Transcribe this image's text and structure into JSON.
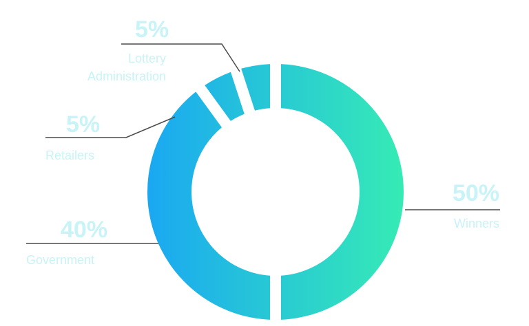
{
  "chart_data": {
    "type": "pie",
    "title": "",
    "categories": [
      "Winners",
      "Government",
      "Retailers",
      "Lottery Administration"
    ],
    "values": [
      50,
      40,
      5,
      5
    ],
    "value_labels": [
      "50%",
      "40%",
      "5%",
      "5%"
    ],
    "label_lines": {
      "winners": [
        "Winners"
      ],
      "government": [
        "Government"
      ],
      "retailers": [
        "Retailers"
      ],
      "lottery_administration": [
        "Lottery",
        "Administration"
      ]
    },
    "colors": {
      "gradient_start": "#1aa8f2",
      "gradient_end": "#36ebb5",
      "label_text": "#c8f3f7",
      "leader_line": "#4a4a4a"
    }
  }
}
